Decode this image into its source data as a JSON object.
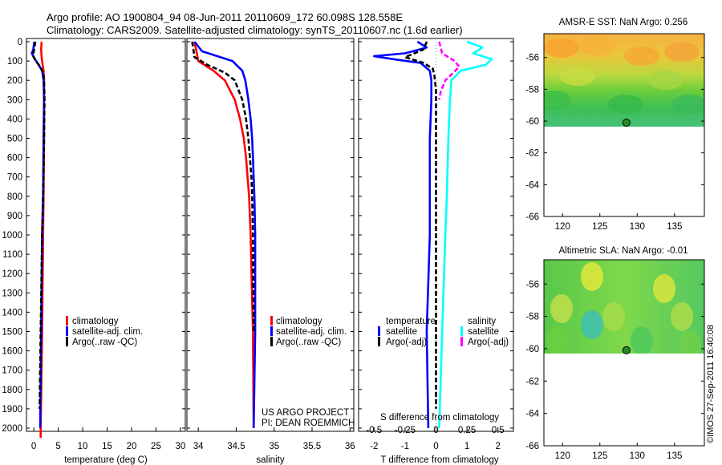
{
  "header": {
    "line1": "Argo profile: AO 1900804_94 08-Jun-2011 20110609_172 60.098S 128.558E",
    "line2": "Climatology: CARS2009. Satellite-adjusted climatology: synTS_20110607.nc (1.6d earlier)"
  },
  "colors": {
    "climatology": "#ff0000",
    "satellite": "#0000ff",
    "argo": "#000000",
    "sal_satellite": "#00ffff",
    "sal_argo": "#ff00ff"
  },
  "depth_ticks": [
    "0",
    "100",
    "200",
    "300",
    "400",
    "500",
    "600",
    "700",
    "800",
    "900",
    "1000",
    "1100",
    "1200",
    "1300",
    "1400",
    "1500",
    "1600",
    "1700",
    "1800",
    "1900",
    "2000"
  ],
  "chart_data": [
    {
      "type": "line",
      "xlabel": "temperature (deg C)",
      "xticks": [
        "0",
        "5",
        "10",
        "15",
        "20",
        "25",
        "30"
      ],
      "xlim": [
        -1.5,
        31
      ],
      "ylim": [
        2080,
        0
      ],
      "legend": [
        "climatology",
        "satellite-adj. clim.",
        "Argo(..raw -QC)"
      ],
      "series": [
        {
          "name": "climatology",
          "depth": [
            0,
            40,
            80,
            120,
            150,
            200,
            300,
            500,
            800,
            1000,
            1500,
            2000,
            2050
          ],
          "values": [
            1.6,
            1.5,
            1.6,
            1.8,
            2.0,
            2.1,
            2.1,
            2.1,
            2.0,
            1.9,
            1.7,
            1.4,
            1.4
          ]
        },
        {
          "name": "satellite-adj. clim.",
          "depth": [
            0,
            40,
            60,
            90,
            120,
            150,
            200,
            300,
            500,
            800,
            1000,
            1500,
            2000
          ],
          "values": [
            0.1,
            -0.1,
            -0.4,
            0.2,
            1.0,
            1.7,
            2.0,
            2.1,
            2.0,
            1.9,
            1.7,
            1.5,
            1.3
          ]
        },
        {
          "name": "Argo(..raw -QC)",
          "depth": [
            0,
            40,
            70,
            100,
            130,
            160,
            200,
            300,
            500,
            800,
            1000,
            1500,
            1900
          ],
          "values": [
            0.3,
            0.1,
            -0.2,
            0.4,
            1.3,
            1.9,
            2.1,
            2.2,
            2.1,
            1.9,
            1.7,
            1.4,
            1.2
          ]
        }
      ]
    },
    {
      "type": "line",
      "xlabel": "salinity",
      "xticks": [
        "34",
        "34.5",
        "35",
        "35.5",
        "36"
      ],
      "xlim": [
        33.85,
        36.05
      ],
      "ylim": [
        2080,
        0
      ],
      "legend": [
        "climatology",
        "satellite-adj. clim.",
        "Argo(..raw -QC)"
      ],
      "annotation": [
        "US ARGO PROJECT",
        "PI: DEAN ROEMMICH"
      ],
      "series": [
        {
          "name": "climatology",
          "depth": [
            0,
            100,
            150,
            200,
            300,
            400,
            500,
            600,
            700,
            800,
            1000,
            1500,
            2000
          ],
          "values": [
            33.95,
            34.0,
            34.2,
            34.35,
            34.48,
            34.55,
            34.6,
            34.63,
            34.65,
            34.67,
            34.69,
            34.72,
            34.73
          ]
        },
        {
          "name": "satellite-adj. clim.",
          "depth": [
            0,
            50,
            100,
            150,
            200,
            300,
            400,
            500,
            600,
            700,
            800,
            1000,
            1500,
            2000
          ],
          "values": [
            33.95,
            34.05,
            34.45,
            34.58,
            34.62,
            34.66,
            34.69,
            34.71,
            34.72,
            34.73,
            34.74,
            34.75,
            34.75,
            34.73
          ]
        },
        {
          "name": "Argo(..raw -QC)",
          "depth": [
            0,
            80,
            120,
            160,
            200,
            300,
            400,
            500,
            600,
            700,
            800,
            1000,
            1500
          ],
          "values": [
            33.92,
            33.95,
            34.12,
            34.35,
            34.48,
            34.58,
            34.63,
            34.66,
            34.68,
            34.7,
            34.71,
            34.72,
            34.73
          ]
        }
      ]
    },
    {
      "type": "line",
      "xlabel": "T difference from climatology",
      "xlabel2": "S difference from climatology",
      "xticks": [
        "-2",
        "-1",
        "0",
        "1",
        "2"
      ],
      "xticks2": [
        "-0.5",
        "-0.25",
        "0",
        "0.25",
        "0.5"
      ],
      "xlim": [
        -2.5,
        2.5
      ],
      "ylim": [
        2080,
        0
      ],
      "legend_temperature": {
        "title": "temperature",
        "items": [
          "satellite",
          "Argo(-adj)"
        ]
      },
      "legend_salinity": {
        "title": "salinity",
        "items": [
          "satellite",
          "Argo(-adj)"
        ]
      },
      "series": [
        {
          "name": "temperature satellite",
          "depth": [
            0,
            30,
            60,
            75,
            90,
            110,
            150,
            200,
            300,
            500,
            800,
            1000,
            1500,
            2000
          ],
          "values": [
            -0.6,
            -0.3,
            -1.0,
            -2.0,
            -1.4,
            -0.5,
            -0.2,
            -0.15,
            -0.15,
            -0.2,
            -0.2,
            -0.2,
            -0.3,
            -0.25
          ]
        },
        {
          "name": "temperature Argo(-adj)",
          "depth": [
            0,
            40,
            80,
            110,
            140,
            180,
            250,
            500,
            1000,
            1500,
            1900
          ],
          "values": [
            -0.3,
            -0.4,
            -1.0,
            -0.4,
            -0.1,
            -0.05,
            0,
            0,
            0,
            0,
            0
          ]
        },
        {
          "name": "salinity satellite",
          "depth": [
            0,
            30,
            60,
            90,
            120,
            150,
            200,
            300,
            500,
            800,
            1000,
            1500,
            2000
          ],
          "values": [
            1.0,
            1.5,
            1.2,
            1.8,
            1.6,
            0.8,
            0.5,
            0.45,
            0.4,
            0.35,
            0.3,
            0.2,
            0.1
          ]
        },
        {
          "name": "salinity Argo(-adj)",
          "depth": [
            0,
            60,
            100,
            130,
            170,
            200,
            260,
            300
          ],
          "values": [
            0.1,
            0.2,
            0.6,
            0.75,
            0.5,
            0.3,
            0.15,
            0.1
          ]
        }
      ]
    }
  ],
  "maps": [
    {
      "title": "AMSR-E SST: NaN Argo: 0.256",
      "yticks": [
        "-56",
        "-58",
        "-60",
        "-62",
        "-64",
        "-66"
      ],
      "xticks": [
        "120",
        "125",
        "130",
        "135"
      ],
      "xlim": [
        117.5,
        139
      ],
      "ylim": [
        -66,
        -54.5
      ],
      "data_lat_min": -60.1,
      "marker": {
        "lon": 128.558,
        "lat": -60.098
      }
    },
    {
      "title": "Altimetric SLA: NaN Argo: -0.01",
      "yticks": [
        "-56",
        "-58",
        "-60",
        "-62",
        "-64",
        "-66"
      ],
      "xticks": [
        "120",
        "125",
        "130",
        "135"
      ],
      "xlim": [
        117.5,
        139
      ],
      "ylim": [
        -66,
        -54.5
      ],
      "data_lat_min": -60.1,
      "marker": {
        "lon": 128.558,
        "lat": -60.098
      }
    }
  ],
  "footer_stamp": "©IMOS 27-Sep-2011 16:40:08"
}
